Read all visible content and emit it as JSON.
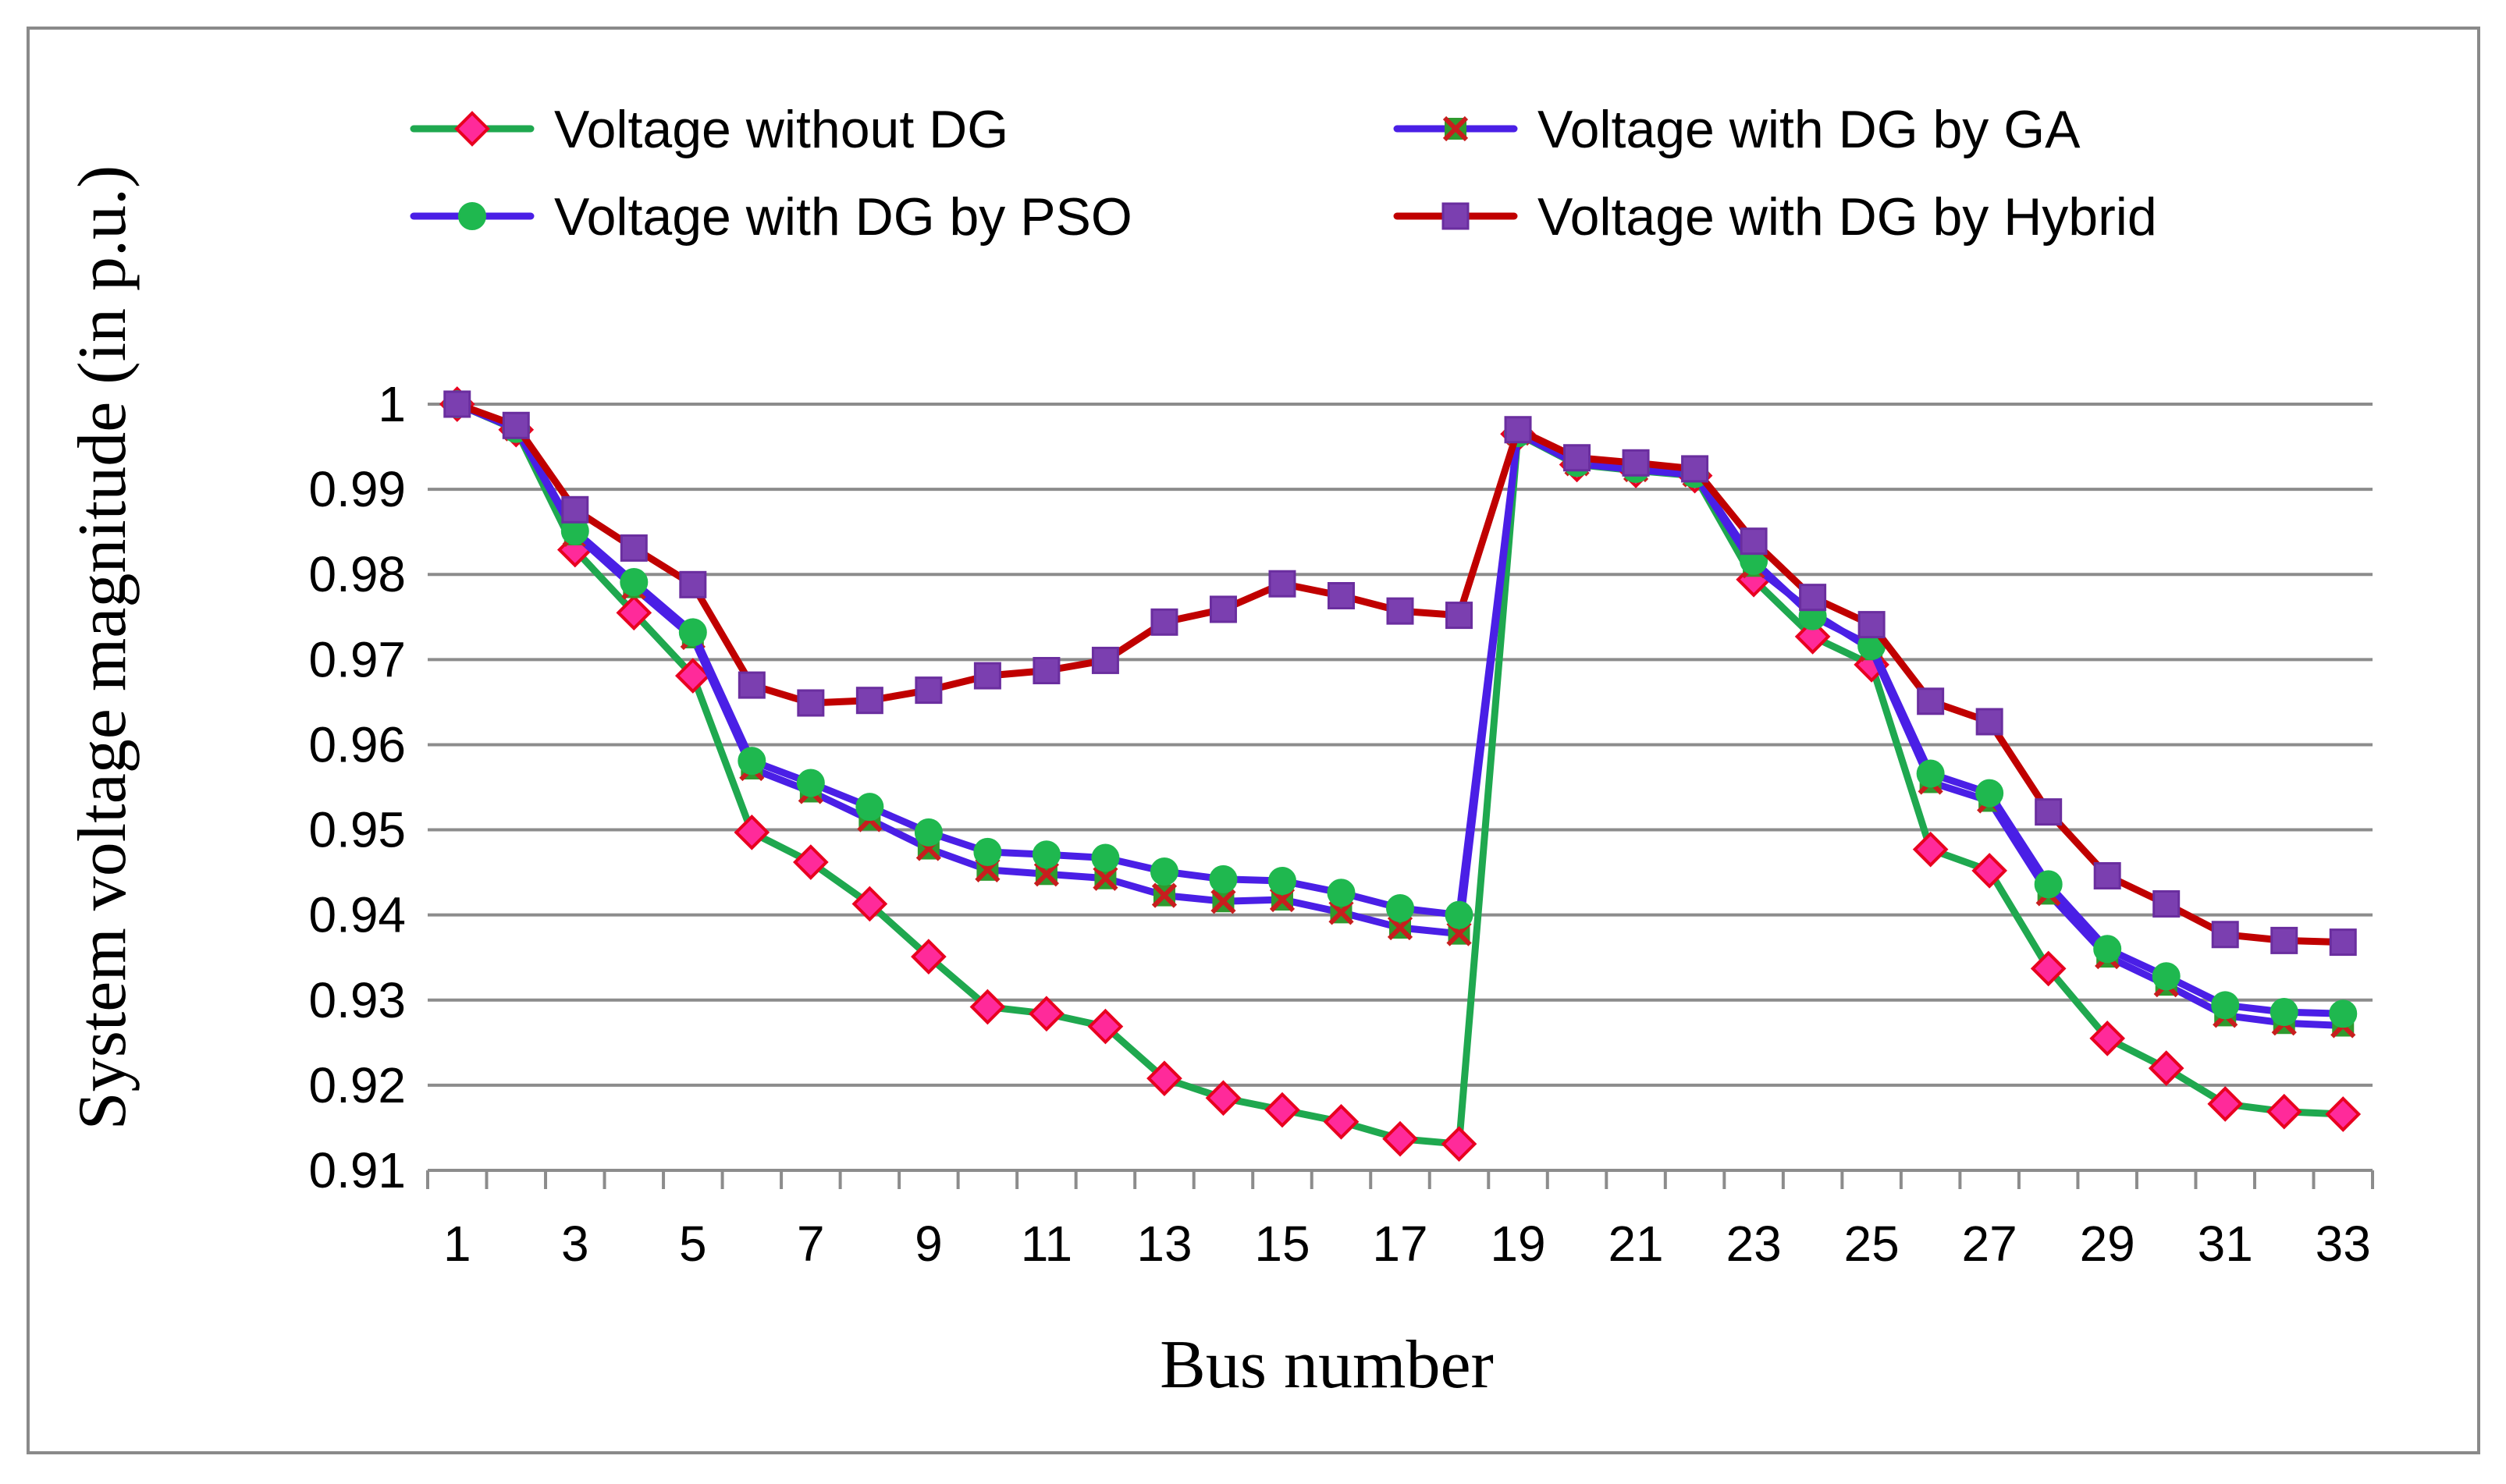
{
  "chart_data": {
    "type": "line",
    "title": "",
    "xlabel": "Bus number",
    "ylabel": "System voltage magnitude (in p.u.)",
    "ylim": [
      0.91,
      1.0
    ],
    "y_ticks": [
      "0.91",
      "0.92",
      "0.93",
      "0.94",
      "0.95",
      "0.96",
      "0.97",
      "0.98",
      "0.99",
      "1"
    ],
    "x": [
      1,
      2,
      3,
      4,
      5,
      6,
      7,
      8,
      9,
      10,
      11,
      12,
      13,
      14,
      15,
      16,
      17,
      18,
      19,
      20,
      21,
      22,
      23,
      24,
      25,
      26,
      27,
      28,
      29,
      30,
      31,
      32,
      33
    ],
    "x_tick_labels": [
      "1",
      "3",
      "5",
      "7",
      "9",
      "11",
      "13",
      "15",
      "17",
      "19",
      "21",
      "23",
      "25",
      "27",
      "29",
      "31",
      "33"
    ],
    "grid": "horizontal",
    "legend_position": "top",
    "series": [
      {
        "name": "Voltage without DG",
        "line_color": "#1FA84F",
        "marker": "diamond",
        "marker_fill": "#FF2A9A",
        "marker_stroke": "#E8001F",
        "values": [
          1.0,
          0.997,
          0.9829,
          0.9755,
          0.9681,
          0.9497,
          0.9462,
          0.9413,
          0.9351,
          0.9292,
          0.9284,
          0.9269,
          0.9208,
          0.9185,
          0.9171,
          0.9157,
          0.9137,
          0.9131,
          0.9965,
          0.9929,
          0.9922,
          0.9916,
          0.9794,
          0.9727,
          0.9694,
          0.9477,
          0.9452,
          0.9337,
          0.9255,
          0.922,
          0.9178,
          0.9169,
          0.9166
        ]
      },
      {
        "name": "Voltage with DG by GA",
        "line_color": "#4A1FE6",
        "marker": "x-square",
        "marker_fill": "#2F9A2F",
        "marker_stroke": "#C81E1E",
        "values": [
          1.0,
          0.9971,
          0.9847,
          0.9785,
          0.9726,
          0.9572,
          0.9545,
          0.9512,
          0.9478,
          0.9453,
          0.9448,
          0.9443,
          0.9423,
          0.9416,
          0.9418,
          0.9403,
          0.9385,
          0.9378,
          0.9966,
          0.993,
          0.9923,
          0.9917,
          0.981,
          0.9755,
          0.9712,
          0.9556,
          0.9534,
          0.9425,
          0.9351,
          0.9318,
          0.9282,
          0.9273,
          0.927
        ]
      },
      {
        "name": "Voltage with DG by PSO",
        "line_color": "#4A1FE6",
        "marker": "circle",
        "marker_fill": "#1FB84F",
        "marker_stroke": "#1FB84F",
        "values": [
          1.0,
          0.9971,
          0.9851,
          0.9791,
          0.9732,
          0.9581,
          0.9555,
          0.9527,
          0.9497,
          0.9474,
          0.9471,
          0.9467,
          0.9451,
          0.9442,
          0.944,
          0.9426,
          0.9408,
          0.94,
          0.9966,
          0.9931,
          0.9924,
          0.9918,
          0.9816,
          0.9751,
          0.9716,
          0.9566,
          0.9543,
          0.9436,
          0.936,
          0.9328,
          0.9294,
          0.9286,
          0.9284
        ]
      },
      {
        "name": "Voltage with DG by Hybrid",
        "line_color": "#C00000",
        "marker": "square",
        "marker_fill": "#7B3FB0",
        "marker_stroke": "#6A2E9F",
        "values": [
          1.0,
          0.9975,
          0.9876,
          0.9831,
          0.9788,
          0.967,
          0.9649,
          0.9652,
          0.9664,
          0.9681,
          0.9687,
          0.9699,
          0.9744,
          0.9759,
          0.9789,
          0.9775,
          0.9757,
          0.9752,
          0.997,
          0.9937,
          0.9931,
          0.9924,
          0.9839,
          0.9773,
          0.9741,
          0.9651,
          0.9627,
          0.9521,
          0.9446,
          0.9413,
          0.9377,
          0.937,
          0.9368
        ]
      }
    ]
  }
}
